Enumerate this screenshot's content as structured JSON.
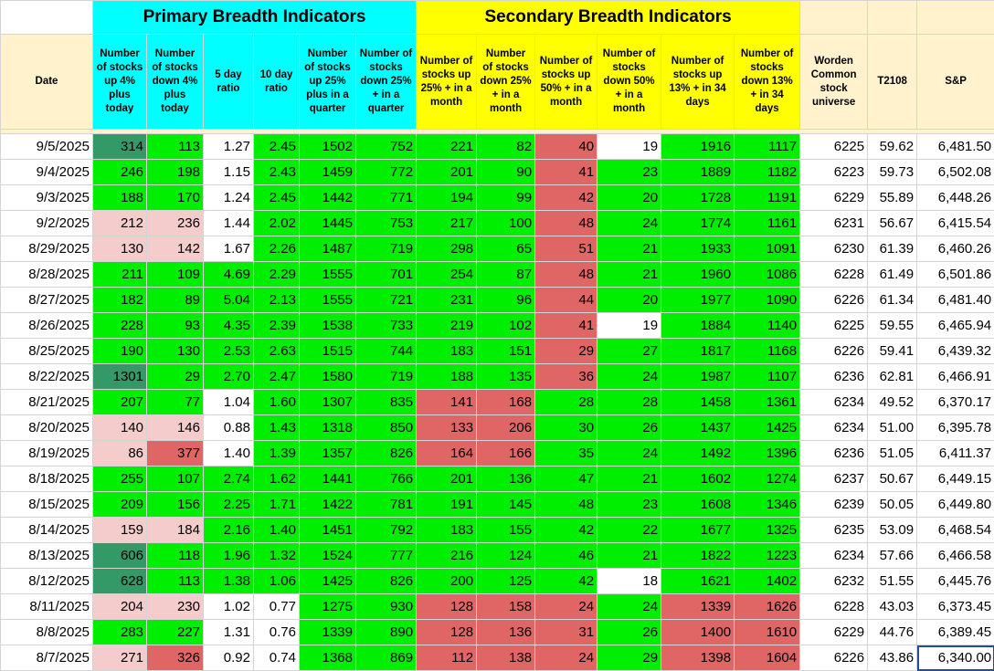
{
  "bands": {
    "primary": "Primary Breadth Indicators",
    "secondary": "Secondary Breadth Indicators"
  },
  "headers": [
    "Date",
    "Number of stocks up 4% plus today",
    "Number of stocks down 4% plus today",
    "5 day ratio",
    "10 day ratio",
    "Number of stocks up 25% plus in a quarter",
    "Number of stocks down 25% + in a quarter",
    "Number of stocks up 25% + in a month",
    "Number of stocks down 25% + in a month",
    "Number of stocks up 50% + in a month",
    "Number of stocks down 50% + in a month",
    "Number of stocks up 13% + in 34 days",
    "Number of stocks down 13% + in 34 days",
    "Worden Common stock universe",
    "T2108",
    "S&P"
  ],
  "colors": {
    "green": "#00ee00",
    "red": "#e06666",
    "pink": "#f4cccc",
    "dark_green": "#339966",
    "white": "#ffffff",
    "cyan": "#00ffff",
    "yellow": "#ffff00"
  },
  "selected_cell": "8/7/2025 S&P",
  "rows": [
    {
      "v": [
        "9/5/2025",
        "314",
        "113",
        "1.27",
        "2.45",
        "1502",
        "752",
        "221",
        "82",
        "40",
        "19",
        "1916",
        "1117",
        "6225",
        "59.62",
        "6,481.50"
      ],
      "c": [
        "w",
        "d",
        "g",
        "w",
        "g",
        "g",
        "g",
        "g",
        "g",
        "r",
        "w",
        "g",
        "g",
        "w",
        "w",
        "w"
      ]
    },
    {
      "v": [
        "9/4/2025",
        "246",
        "198",
        "1.15",
        "2.43",
        "1459",
        "772",
        "201",
        "90",
        "41",
        "23",
        "1889",
        "1182",
        "6223",
        "59.73",
        "6,502.08"
      ],
      "c": [
        "w",
        "g",
        "g",
        "w",
        "g",
        "g",
        "g",
        "g",
        "g",
        "r",
        "g",
        "g",
        "g",
        "w",
        "w",
        "w"
      ]
    },
    {
      "v": [
        "9/3/2025",
        "188",
        "170",
        "1.24",
        "2.45",
        "1442",
        "771",
        "194",
        "99",
        "42",
        "20",
        "1728",
        "1191",
        "6229",
        "55.89",
        "6,448.26"
      ],
      "c": [
        "w",
        "g",
        "g",
        "w",
        "g",
        "g",
        "g",
        "g",
        "g",
        "r",
        "g",
        "g",
        "g",
        "w",
        "w",
        "w"
      ]
    },
    {
      "v": [
        "9/2/2025",
        "212",
        "236",
        "1.44",
        "2.02",
        "1445",
        "753",
        "217",
        "100",
        "48",
        "24",
        "1774",
        "1161",
        "6231",
        "56.67",
        "6,415.54"
      ],
      "c": [
        "w",
        "p",
        "p",
        "w",
        "g",
        "g",
        "g",
        "g",
        "g",
        "r",
        "g",
        "g",
        "g",
        "w",
        "w",
        "w"
      ]
    },
    {
      "v": [
        "8/29/2025",
        "130",
        "142",
        "1.67",
        "2.26",
        "1487",
        "719",
        "298",
        "65",
        "51",
        "21",
        "1933",
        "1091",
        "6230",
        "61.39",
        "6,460.26"
      ],
      "c": [
        "w",
        "p",
        "p",
        "w",
        "g",
        "g",
        "g",
        "g",
        "g",
        "r",
        "g",
        "g",
        "g",
        "w",
        "w",
        "w"
      ]
    },
    {
      "v": [
        "8/28/2025",
        "211",
        "109",
        "4.69",
        "2.29",
        "1555",
        "701",
        "254",
        "87",
        "48",
        "21",
        "1960",
        "1086",
        "6228",
        "61.49",
        "6,501.86"
      ],
      "c": [
        "w",
        "g",
        "g",
        "g",
        "g",
        "g",
        "g",
        "g",
        "g",
        "r",
        "g",
        "g",
        "g",
        "w",
        "w",
        "w"
      ]
    },
    {
      "v": [
        "8/27/2025",
        "182",
        "89",
        "5.04",
        "2.13",
        "1555",
        "721",
        "231",
        "96",
        "44",
        "20",
        "1977",
        "1090",
        "6226",
        "61.34",
        "6,481.40"
      ],
      "c": [
        "w",
        "g",
        "g",
        "g",
        "g",
        "g",
        "g",
        "g",
        "g",
        "r",
        "g",
        "g",
        "g",
        "w",
        "w",
        "w"
      ]
    },
    {
      "v": [
        "8/26/2025",
        "228",
        "93",
        "4.35",
        "2.39",
        "1538",
        "733",
        "219",
        "102",
        "41",
        "19",
        "1884",
        "1140",
        "6225",
        "59.55",
        "6,465.94"
      ],
      "c": [
        "w",
        "g",
        "g",
        "g",
        "g",
        "g",
        "g",
        "g",
        "g",
        "r",
        "w",
        "g",
        "g",
        "w",
        "w",
        "w"
      ]
    },
    {
      "v": [
        "8/25/2025",
        "190",
        "130",
        "2.53",
        "2.63",
        "1515",
        "744",
        "183",
        "151",
        "29",
        "27",
        "1817",
        "1168",
        "6226",
        "59.41",
        "6,439.32"
      ],
      "c": [
        "w",
        "g",
        "g",
        "g",
        "g",
        "g",
        "g",
        "g",
        "g",
        "r",
        "g",
        "g",
        "g",
        "w",
        "w",
        "w"
      ]
    },
    {
      "v": [
        "8/22/2025",
        "1301",
        "29",
        "2.70",
        "2.47",
        "1580",
        "719",
        "188",
        "135",
        "36",
        "24",
        "1987",
        "1107",
        "6236",
        "62.81",
        "6,466.91"
      ],
      "c": [
        "w",
        "d",
        "g",
        "g",
        "g",
        "g",
        "g",
        "g",
        "g",
        "r",
        "g",
        "g",
        "g",
        "w",
        "w",
        "w"
      ]
    },
    {
      "v": [
        "8/21/2025",
        "207",
        "77",
        "1.04",
        "1.60",
        "1307",
        "835",
        "141",
        "168",
        "28",
        "28",
        "1458",
        "1361",
        "6234",
        "49.52",
        "6,370.17"
      ],
      "c": [
        "w",
        "g",
        "g",
        "w",
        "g",
        "g",
        "g",
        "r",
        "r",
        "g",
        "g",
        "g",
        "g",
        "w",
        "w",
        "w"
      ]
    },
    {
      "v": [
        "8/20/2025",
        "140",
        "146",
        "0.88",
        "1.43",
        "1318",
        "850",
        "133",
        "206",
        "30",
        "26",
        "1437",
        "1425",
        "6234",
        "51.00",
        "6,395.78"
      ],
      "c": [
        "w",
        "p",
        "p",
        "w",
        "g",
        "g",
        "g",
        "r",
        "r",
        "g",
        "g",
        "g",
        "g",
        "w",
        "w",
        "w"
      ]
    },
    {
      "v": [
        "8/19/2025",
        "86",
        "377",
        "1.40",
        "1.39",
        "1357",
        "826",
        "164",
        "166",
        "35",
        "24",
        "1492",
        "1396",
        "6236",
        "51.05",
        "6,411.37"
      ],
      "c": [
        "w",
        "p",
        "r",
        "w",
        "g",
        "g",
        "g",
        "r",
        "r",
        "g",
        "g",
        "g",
        "g",
        "w",
        "w",
        "w"
      ]
    },
    {
      "v": [
        "8/18/2025",
        "255",
        "107",
        "2.74",
        "1.62",
        "1441",
        "766",
        "201",
        "136",
        "47",
        "21",
        "1602",
        "1274",
        "6237",
        "50.67",
        "6,449.15"
      ],
      "c": [
        "w",
        "g",
        "g",
        "g",
        "g",
        "g",
        "g",
        "g",
        "g",
        "g",
        "g",
        "g",
        "g",
        "w",
        "w",
        "w"
      ]
    },
    {
      "v": [
        "8/15/2025",
        "209",
        "156",
        "2.25",
        "1.71",
        "1422",
        "781",
        "191",
        "145",
        "48",
        "23",
        "1608",
        "1346",
        "6239",
        "50.05",
        "6,449.80"
      ],
      "c": [
        "w",
        "g",
        "g",
        "g",
        "g",
        "g",
        "g",
        "g",
        "g",
        "g",
        "g",
        "g",
        "g",
        "w",
        "w",
        "w"
      ]
    },
    {
      "v": [
        "8/14/2025",
        "159",
        "184",
        "2.16",
        "1.40",
        "1451",
        "792",
        "183",
        "155",
        "42",
        "22",
        "1677",
        "1325",
        "6235",
        "53.09",
        "6,468.54"
      ],
      "c": [
        "w",
        "p",
        "p",
        "g",
        "g",
        "g",
        "g",
        "g",
        "g",
        "g",
        "g",
        "g",
        "g",
        "w",
        "w",
        "w"
      ]
    },
    {
      "v": [
        "8/13/2025",
        "606",
        "118",
        "1.96",
        "1.32",
        "1524",
        "777",
        "216",
        "124",
        "46",
        "21",
        "1822",
        "1223",
        "6234",
        "57.66",
        "6,466.58"
      ],
      "c": [
        "w",
        "d",
        "g",
        "g",
        "g",
        "g",
        "g",
        "g",
        "g",
        "g",
        "g",
        "g",
        "g",
        "w",
        "w",
        "w"
      ]
    },
    {
      "v": [
        "8/12/2025",
        "628",
        "113",
        "1.38",
        "1.06",
        "1425",
        "826",
        "200",
        "125",
        "42",
        "18",
        "1621",
        "1402",
        "6232",
        "51.55",
        "6,445.76"
      ],
      "c": [
        "w",
        "d",
        "g",
        "g",
        "g",
        "g",
        "g",
        "g",
        "g",
        "g",
        "w",
        "g",
        "g",
        "w",
        "w",
        "w"
      ]
    },
    {
      "v": [
        "8/11/2025",
        "204",
        "230",
        "1.02",
        "0.77",
        "1275",
        "930",
        "128",
        "158",
        "24",
        "24",
        "1339",
        "1626",
        "6228",
        "43.03",
        "6,373.45"
      ],
      "c": [
        "w",
        "p",
        "p",
        "w",
        "w",
        "g",
        "g",
        "r",
        "r",
        "r",
        "g",
        "r",
        "r",
        "w",
        "w",
        "w"
      ]
    },
    {
      "v": [
        "8/8/2025",
        "283",
        "227",
        "1.31",
        "0.76",
        "1339",
        "890",
        "128",
        "136",
        "31",
        "26",
        "1400",
        "1610",
        "6229",
        "44.76",
        "6,389.45"
      ],
      "c": [
        "w",
        "g",
        "g",
        "w",
        "w",
        "g",
        "g",
        "r",
        "r",
        "r",
        "g",
        "r",
        "r",
        "w",
        "w",
        "w"
      ]
    },
    {
      "v": [
        "8/7/2025",
        "271",
        "326",
        "0.92",
        "0.74",
        "1368",
        "869",
        "112",
        "138",
        "24",
        "29",
        "1398",
        "1604",
        "6226",
        "43.86",
        "6,340.00"
      ],
      "c": [
        "w",
        "p",
        "r",
        "w",
        "w",
        "g",
        "g",
        "r",
        "r",
        "r",
        "g",
        "r",
        "r",
        "w",
        "w",
        "w"
      ]
    }
  ]
}
